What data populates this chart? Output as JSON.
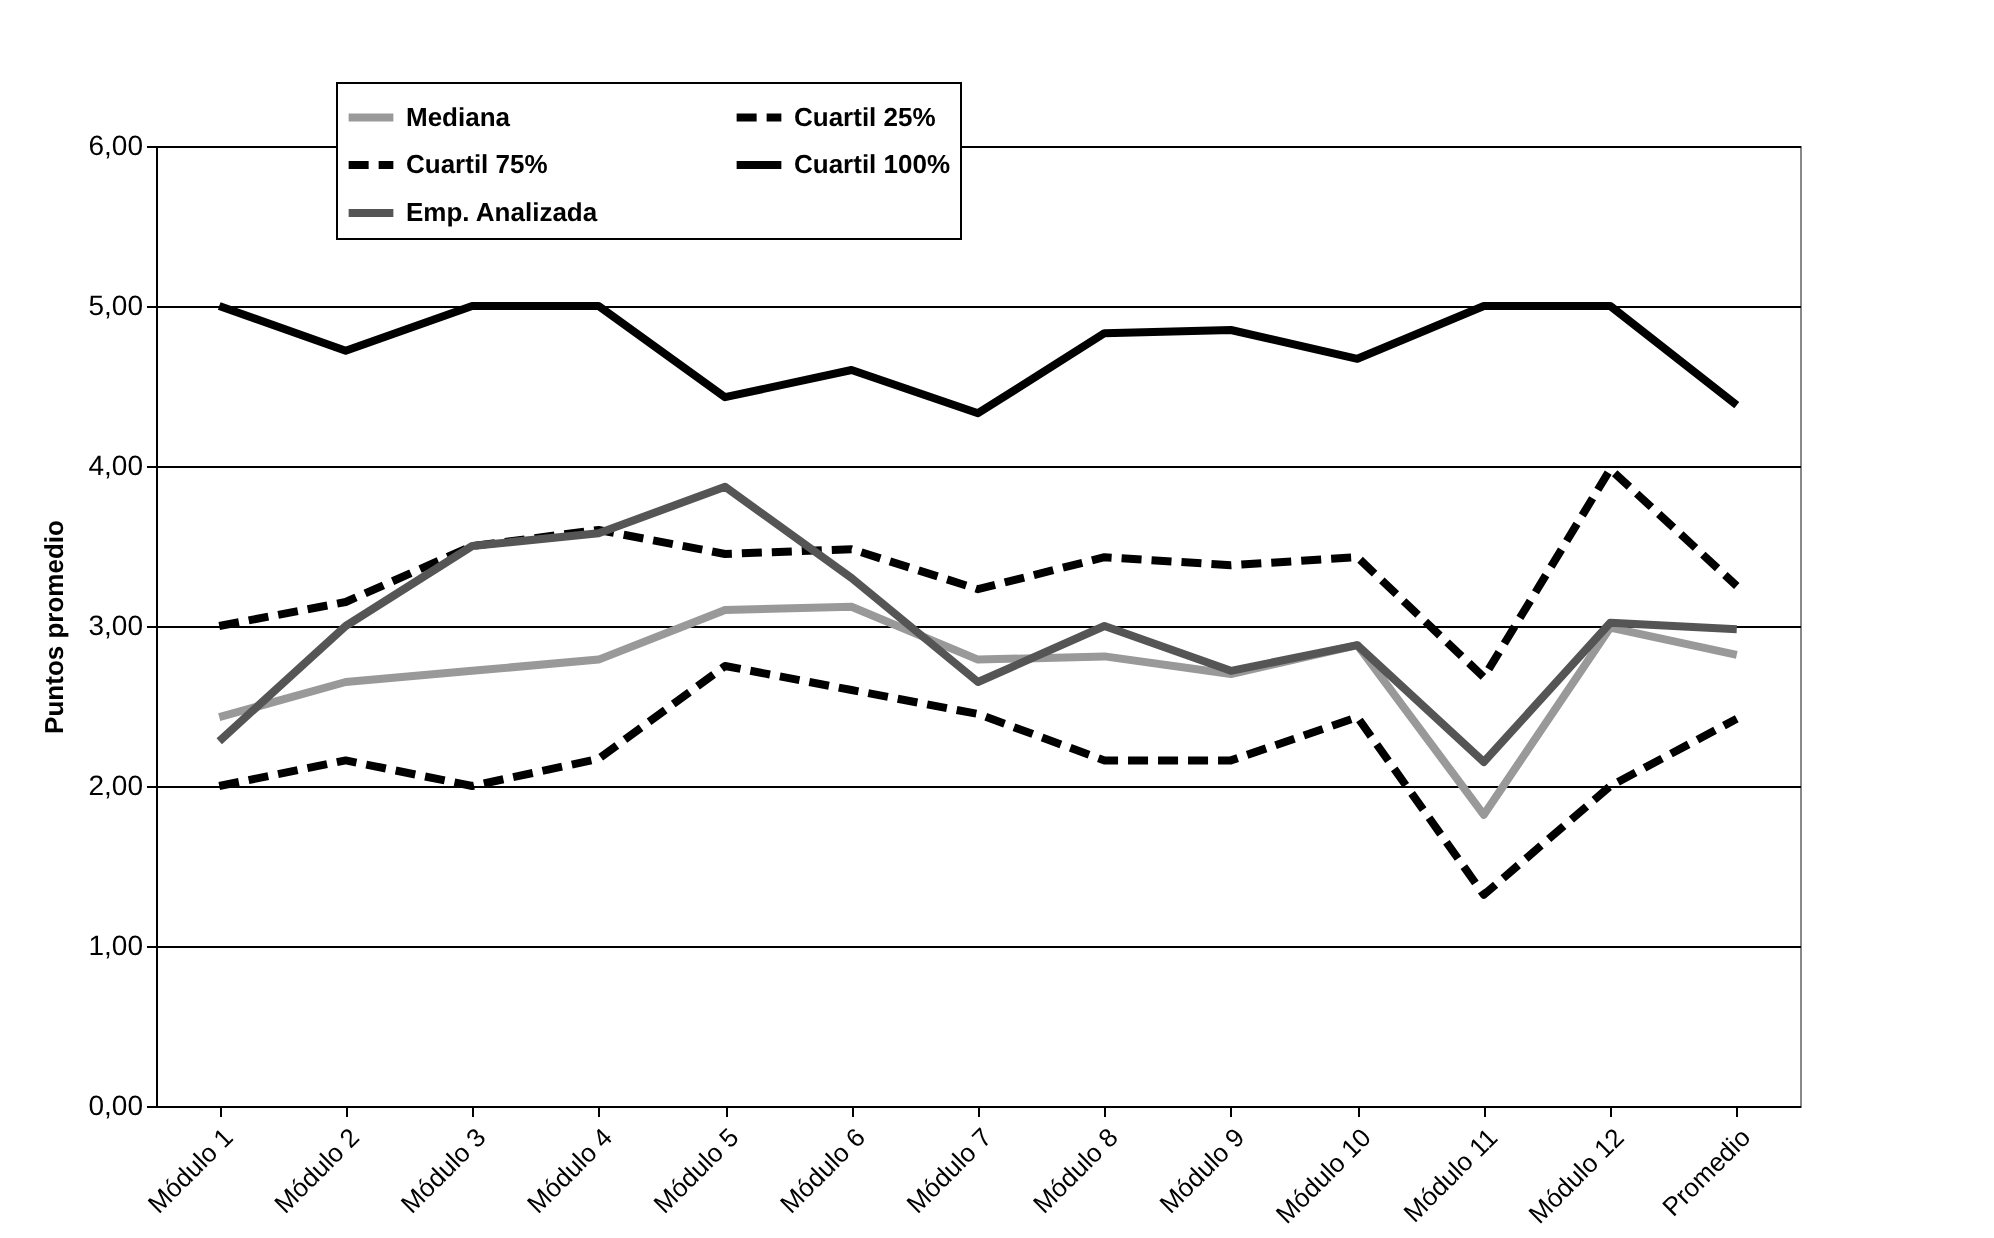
{
  "chart_data": {
    "type": "line",
    "ylabel": "Puntos promedio",
    "categories": [
      "Módulo 1",
      "Módulo 2",
      "Módulo 3",
      "Módulo 4",
      "Módulo 5",
      "Módulo 6",
      "Módulo 7",
      "Módulo 8",
      "Módulo 9",
      "Módulo 10",
      "Módulo 11",
      "Módulo 12",
      "Promedio"
    ],
    "series": [
      {
        "name": "Mediana",
        "color": "#999999",
        "line_style": "solid",
        "values": [
          2.43,
          2.65,
          2.72,
          2.79,
          3.1,
          3.12,
          2.79,
          2.81,
          2.7,
          2.88,
          1.82,
          2.99,
          2.82
        ]
      },
      {
        "name": "Cuartil 25%",
        "color": "#000000",
        "line_style": "dashed",
        "values": [
          2.0,
          2.16,
          2.0,
          2.17,
          2.75,
          2.6,
          2.45,
          2.16,
          2.16,
          2.43,
          1.32,
          2.0,
          2.42
        ]
      },
      {
        "name": "Cuartil 75%",
        "color": "#000000",
        "line_style": "dashed",
        "values": [
          3.0,
          3.15,
          3.5,
          3.6,
          3.45,
          3.48,
          3.23,
          3.43,
          3.38,
          3.43,
          2.68,
          3.98,
          3.25
        ]
      },
      {
        "name": "Cuartil 100%",
        "color": "#000000",
        "line_style": "solid",
        "values": [
          5.0,
          4.72,
          5.0,
          5.0,
          4.43,
          4.6,
          4.33,
          4.83,
          4.85,
          4.67,
          5.0,
          5.0,
          4.38
        ]
      },
      {
        "name": "Emp. Analizada",
        "color": "#555555",
        "line_style": "solid",
        "values": [
          2.28,
          3.0,
          3.5,
          3.58,
          3.87,
          3.3,
          2.65,
          3.0,
          2.72,
          2.88,
          2.15,
          3.02,
          2.98
        ]
      }
    ],
    "ylim": [
      0,
      6
    ],
    "yticks": [
      {
        "value": 0,
        "label": "0,00"
      },
      {
        "value": 1,
        "label": "1,00"
      },
      {
        "value": 2,
        "label": "2,00"
      },
      {
        "value": 3,
        "label": "3,00"
      },
      {
        "value": 4,
        "label": "4,00"
      },
      {
        "value": 5,
        "label": "5,00"
      },
      {
        "value": 6,
        "label": "6,00"
      }
    ],
    "grid": "y",
    "legend": "top",
    "marker": "none"
  }
}
